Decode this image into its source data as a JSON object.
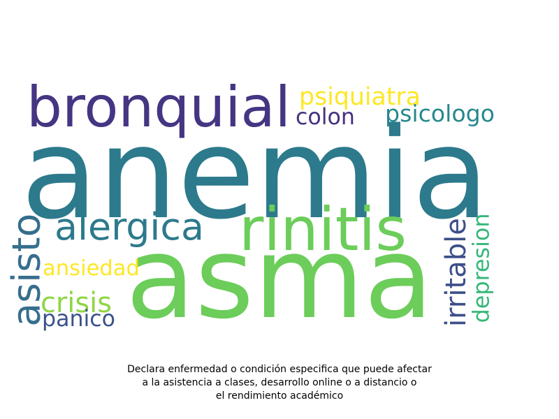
{
  "words": [
    {
      "text": "anemia",
      "color": "#2c7a8c"
    },
    {
      "text": "asma",
      "color": "#6ccd5a"
    },
    {
      "text": "bronquial",
      "color": "#453582"
    },
    {
      "text": "rinitis",
      "color": "#6ccd5a"
    },
    {
      "text": "alergica",
      "color": "#2c7a8c"
    },
    {
      "text": "asisto",
      "color": "#366e8d"
    },
    {
      "text": "psiquiatra",
      "color": "#fde725"
    },
    {
      "text": "colon",
      "color": "#46327e"
    },
    {
      "text": "psicologo",
      "color": "#26888e"
    },
    {
      "text": "ansiedad",
      "color": "#fde725"
    },
    {
      "text": "crisis",
      "color": "#8ed645"
    },
    {
      "text": "panico",
      "color": "#3b528b"
    },
    {
      "text": "irritable",
      "color": "#3d4e8a"
    },
    {
      "text": "depresion",
      "color": "#35b779"
    }
  ],
  "caption": {
    "line1": "Declara enfermedad o condición especifica que puede afectar",
    "line2": "a la asistencia a clases, desarrollo online o a distancio o",
    "line3": "el rendimiento académico"
  }
}
